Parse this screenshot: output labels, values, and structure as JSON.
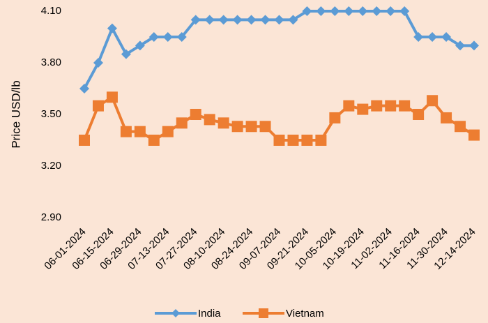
{
  "chart_data": {
    "type": "line",
    "y_label": "Price USD/lb",
    "categories": [
      "06-01-2024",
      null,
      "06-15-2024",
      null,
      "06-29-2024",
      null,
      "07-13-2024",
      null,
      "07-27-2024",
      null,
      "08-10-2024",
      null,
      "08-24-2024",
      null,
      "09-07-2024",
      null,
      "09-21-2024",
      null,
      "10-05-2024",
      null,
      "10-19-2024",
      null,
      "11-02-2024",
      null,
      "11-16-2024",
      null,
      "11-30-2024",
      null,
      "12-14-2024"
    ],
    "series": [
      {
        "name": "India",
        "color": "#5b9bd5",
        "marker": "diamond",
        "values": [
          3.65,
          3.8,
          4.0,
          3.85,
          3.9,
          3.95,
          3.95,
          3.95,
          4.05,
          4.05,
          4.05,
          4.05,
          4.05,
          4.05,
          4.05,
          4.05,
          4.1,
          4.1,
          4.1,
          4.1,
          4.1,
          4.1,
          4.1,
          4.1,
          3.95,
          3.95,
          3.95,
          3.9,
          3.9
        ]
      },
      {
        "name": "Vietnam",
        "color": "#ed7d31",
        "marker": "square",
        "values": [
          3.35,
          3.55,
          3.6,
          3.4,
          3.4,
          3.35,
          3.4,
          3.45,
          3.5,
          3.47,
          3.45,
          3.43,
          3.43,
          3.43,
          3.35,
          3.35,
          3.35,
          3.35,
          3.48,
          3.55,
          3.53,
          3.55,
          3.55,
          3.55,
          3.5,
          3.58,
          3.48,
          3.43,
          3.38
        ]
      }
    ],
    "ylim": [
      2.9,
      4.1
    ],
    "yticks": [
      {
        "value": 2.9,
        "label": "2.90"
      },
      {
        "value": 3.2,
        "label": "3.20"
      },
      {
        "value": 3.5,
        "label": "3.50"
      },
      {
        "value": 3.8,
        "label": "3.80"
      },
      {
        "value": 4.1,
        "label": "4.10"
      }
    ],
    "grid": false,
    "legend": "bottom"
  }
}
